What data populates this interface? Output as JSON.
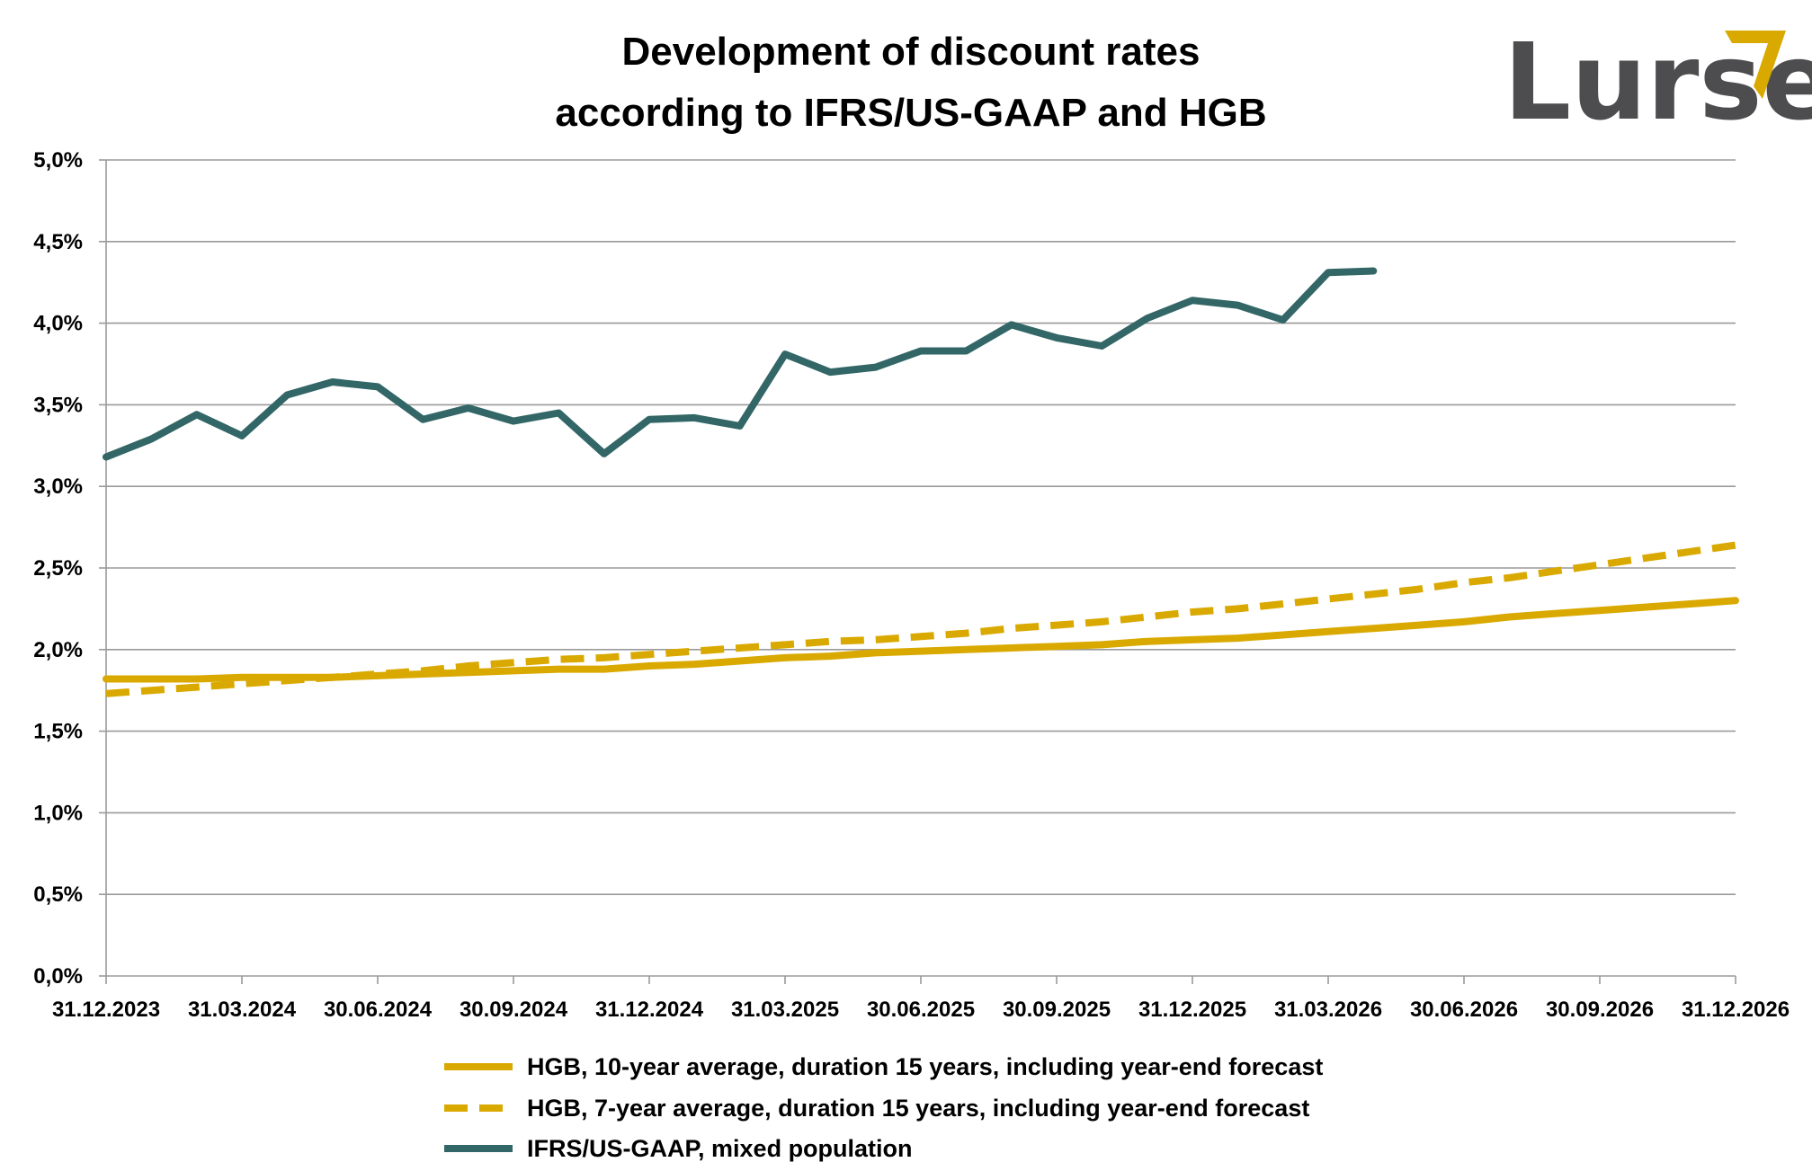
{
  "header": {
    "title_line1": "Development of discount rates",
    "title_line2": "according to IFRS/US-GAAP and HGB"
  },
  "logo": {
    "text": "Lurse",
    "text_color": "#4d4d4f",
    "accent_color": "#d9a900",
    "icon": "chevron-accent-icon"
  },
  "chart_data": {
    "type": "line",
    "title": "Development of discount rates according to IFRS/US-GAAP and HGB",
    "xlabel": "",
    "ylabel": "",
    "ylim": [
      0,
      5
    ],
    "y_ticks": [
      "0,0%",
      "0,5%",
      "1,0%",
      "1,5%",
      "2,0%",
      "2,5%",
      "3,0%",
      "3,5%",
      "4,0%",
      "4,5%",
      "5,0%"
    ],
    "x_ticks": [
      "31.12.2023",
      "31.03.2024",
      "30.06.2024",
      "30.09.2024",
      "31.12.2024",
      "31.03.2025",
      "30.06.2025",
      "30.09.2025",
      "31.12.2025",
      "31.03.2026",
      "30.06.2026",
      "30.09.2026",
      "31.12.2026"
    ],
    "x_range": [
      "31.12.2023",
      "31.12.2026"
    ],
    "x_step": "monthly",
    "grid": true,
    "legend_position": "bottom",
    "series": [
      {
        "name": "HGB, 10-year average, duration 15 years, including year-end forecast",
        "color": "#d9a900",
        "dash": "solid",
        "values": [
          1.82,
          1.82,
          1.82,
          1.83,
          1.83,
          1.83,
          1.84,
          1.85,
          1.86,
          1.87,
          1.88,
          1.88,
          1.9,
          1.91,
          1.93,
          1.95,
          1.96,
          1.98,
          1.99,
          2.0,
          2.01,
          2.02,
          2.03,
          2.05,
          2.06,
          2.07,
          2.09,
          2.11,
          2.13,
          2.15,
          2.17,
          2.2,
          2.22,
          2.24,
          2.26,
          2.28,
          2.3
        ]
      },
      {
        "name": "HGB, 7-year average, duration 15 years, including year-end forecast",
        "color": "#d9a900",
        "dash": "dashed",
        "values": [
          1.73,
          1.75,
          1.77,
          1.79,
          1.81,
          1.83,
          1.85,
          1.87,
          1.9,
          1.92,
          1.94,
          1.95,
          1.97,
          1.99,
          2.01,
          2.03,
          2.05,
          2.06,
          2.08,
          2.1,
          2.13,
          2.15,
          2.17,
          2.2,
          2.23,
          2.25,
          2.28,
          2.31,
          2.34,
          2.37,
          2.41,
          2.44,
          2.48,
          2.52,
          2.56,
          2.6,
          2.64
        ]
      },
      {
        "name": "IFRS/US-GAAP, mixed population",
        "color": "#336666",
        "dash": "solid",
        "values": [
          3.18,
          3.29,
          3.44,
          3.31,
          3.56,
          3.64,
          3.61,
          3.41,
          3.48,
          3.4,
          3.45,
          3.2,
          3.41,
          3.42,
          3.37,
          3.81,
          3.7,
          3.73,
          3.83,
          3.83,
          3.99,
          3.91,
          3.86,
          4.03,
          4.14,
          4.11,
          4.02,
          4.31,
          4.32
        ]
      }
    ]
  }
}
